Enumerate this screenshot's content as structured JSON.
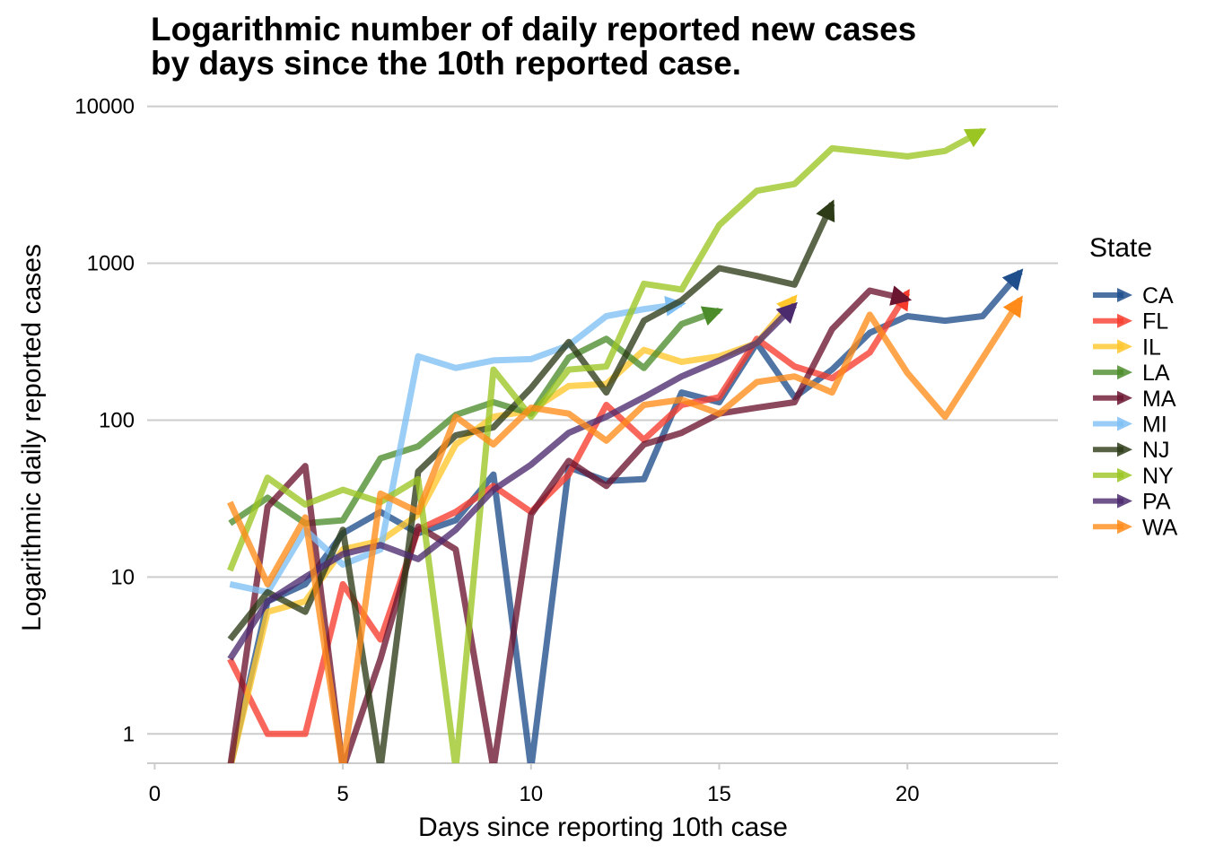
{
  "chart_data": {
    "type": "line",
    "title": "Logarithmic number of daily reported new cases by days since the 10th reported case.",
    "title_lines": [
      "Logarithmic number of daily reported new cases",
      "by days since the 10th reported case."
    ],
    "xlabel": "Days since reporting 10th case",
    "ylabel": "Logarithmic daily reported cases",
    "y_scale": "log10",
    "xlim": [
      -0.2,
      24
    ],
    "ylim": [
      0.65,
      11500
    ],
    "x_ticks": [
      0,
      5,
      10,
      15,
      20
    ],
    "x_tick_labels": [
      "0",
      "5",
      "10",
      "15",
      "20"
    ],
    "y_ticks": [
      1,
      10,
      100,
      1000,
      10000
    ],
    "y_tick_labels": [
      "1",
      "10",
      "100",
      "1000",
      "10000"
    ],
    "grid": "horizontal major",
    "legend": {
      "title": "State",
      "position": "right"
    },
    "series": [
      {
        "name": "CA",
        "color": "#1F4E8C",
        "points": [
          [
            2,
            0.6
          ],
          [
            3,
            7
          ],
          [
            4,
            9
          ],
          [
            5,
            19
          ],
          [
            6,
            26
          ],
          [
            7,
            19
          ],
          [
            8,
            23
          ],
          [
            9,
            45
          ],
          [
            10,
            0.6
          ],
          [
            11,
            50
          ],
          [
            12,
            41
          ],
          [
            13,
            42
          ],
          [
            14,
            150
          ],
          [
            15,
            130
          ],
          [
            16,
            310
          ],
          [
            17,
            140
          ],
          [
            18,
            210
          ],
          [
            19,
            360
          ],
          [
            20,
            460
          ],
          [
            21,
            430
          ],
          [
            22,
            460
          ],
          [
            23,
            880
          ]
        ]
      },
      {
        "name": "FL",
        "color": "#F73C2E",
        "points": [
          [
            2,
            3
          ],
          [
            3,
            1
          ],
          [
            4,
            1
          ],
          [
            5,
            9
          ],
          [
            6,
            4
          ],
          [
            7,
            20
          ],
          [
            8,
            26
          ],
          [
            9,
            38
          ],
          [
            10,
            26
          ],
          [
            11,
            45
          ],
          [
            12,
            125
          ],
          [
            13,
            75
          ],
          [
            14,
            125
          ],
          [
            15,
            140
          ],
          [
            16,
            330
          ],
          [
            17,
            220
          ],
          [
            18,
            185
          ],
          [
            19,
            270
          ],
          [
            20,
            650
          ]
        ]
      },
      {
        "name": "IL",
        "color": "#FFC72C",
        "points": [
          [
            2,
            0.6
          ],
          [
            3,
            6
          ],
          [
            4,
            7
          ],
          [
            5,
            15
          ],
          [
            6,
            17
          ],
          [
            7,
            25
          ],
          [
            8,
            70
          ],
          [
            9,
            105
          ],
          [
            10,
            115
          ],
          [
            11,
            165
          ],
          [
            12,
            170
          ],
          [
            13,
            280
          ],
          [
            14,
            235
          ],
          [
            15,
            255
          ],
          [
            16,
            310
          ],
          [
            17,
            600
          ]
        ]
      },
      {
        "name": "LA",
        "color": "#4C8C2B",
        "points": [
          [
            2,
            22
          ],
          [
            3,
            32
          ],
          [
            4,
            22
          ],
          [
            5,
            23
          ],
          [
            6,
            57
          ],
          [
            7,
            68
          ],
          [
            8,
            108
          ],
          [
            9,
            130
          ],
          [
            10,
            110
          ],
          [
            11,
            250
          ],
          [
            12,
            330
          ],
          [
            13,
            215
          ],
          [
            14,
            410
          ],
          [
            15,
            500
          ]
        ]
      },
      {
        "name": "MA",
        "color": "#6B1530",
        "points": [
          [
            2,
            0.6
          ],
          [
            3,
            28
          ],
          [
            4,
            51
          ],
          [
            5,
            0.6
          ],
          [
            6,
            3
          ],
          [
            7,
            21
          ],
          [
            8,
            15
          ],
          [
            9,
            0.6
          ],
          [
            10,
            25
          ],
          [
            11,
            55
          ],
          [
            12,
            38
          ],
          [
            13,
            70
          ],
          [
            14,
            83
          ],
          [
            15,
            110
          ],
          [
            16,
            120
          ],
          [
            17,
            130
          ],
          [
            18,
            380
          ],
          [
            19,
            670
          ],
          [
            20,
            590
          ]
        ]
      },
      {
        "name": "MI",
        "color": "#7FC0F5",
        "points": [
          [
            2,
            9
          ],
          [
            3,
            8
          ],
          [
            4,
            20
          ],
          [
            5,
            12
          ],
          [
            6,
            15
          ],
          [
            7,
            255
          ],
          [
            8,
            215
          ],
          [
            9,
            240
          ],
          [
            10,
            245
          ],
          [
            11,
            300
          ],
          [
            12,
            460
          ],
          [
            13,
            510
          ],
          [
            14,
            550
          ]
        ]
      },
      {
        "name": "NJ",
        "color": "#2D3B17",
        "points": [
          [
            2,
            4
          ],
          [
            3,
            8
          ],
          [
            4,
            6
          ],
          [
            5,
            20
          ],
          [
            6,
            0.6
          ],
          [
            7,
            47
          ],
          [
            8,
            80
          ],
          [
            9,
            90
          ],
          [
            10,
            160
          ],
          [
            11,
            315
          ],
          [
            12,
            150
          ],
          [
            13,
            430
          ],
          [
            14,
            580
          ],
          [
            15,
            930
          ],
          [
            16,
            830
          ],
          [
            17,
            730
          ],
          [
            18,
            2400
          ]
        ]
      },
      {
        "name": "NY",
        "color": "#9BC523",
        "points": [
          [
            2,
            11
          ],
          [
            3,
            43
          ],
          [
            4,
            29
          ],
          [
            5,
            36
          ],
          [
            6,
            30
          ],
          [
            7,
            42
          ],
          [
            8,
            0.6
          ],
          [
            9,
            210
          ],
          [
            10,
            105
          ],
          [
            11,
            210
          ],
          [
            12,
            220
          ],
          [
            13,
            740
          ],
          [
            14,
            680
          ],
          [
            15,
            1750
          ],
          [
            16,
            2900
          ],
          [
            17,
            3200
          ],
          [
            18,
            5400
          ],
          [
            19,
            5100
          ],
          [
            20,
            4800
          ],
          [
            21,
            5200
          ],
          [
            22,
            7000
          ]
        ]
      },
      {
        "name": "PA",
        "color": "#4B2A6E",
        "points": [
          [
            2,
            3
          ],
          [
            3,
            7
          ],
          [
            4,
            10
          ],
          [
            5,
            14
          ],
          [
            6,
            16
          ],
          [
            7,
            13
          ],
          [
            8,
            20
          ],
          [
            9,
            36
          ],
          [
            10,
            52
          ],
          [
            11,
            83
          ],
          [
            12,
            105
          ],
          [
            13,
            140
          ],
          [
            14,
            190
          ],
          [
            15,
            240
          ],
          [
            16,
            310
          ],
          [
            17,
            540
          ]
        ]
      },
      {
        "name": "WA",
        "color": "#FF8C1A",
        "points": [
          [
            2,
            30
          ],
          [
            3,
            9
          ],
          [
            4,
            24
          ],
          [
            5,
            0.6
          ],
          [
            6,
            34
          ],
          [
            7,
            26
          ],
          [
            8,
            105
          ],
          [
            9,
            70
          ],
          [
            10,
            120
          ],
          [
            11,
            110
          ],
          [
            12,
            74
          ],
          [
            13,
            125
          ],
          [
            14,
            135
          ],
          [
            15,
            110
          ],
          [
            16,
            175
          ],
          [
            17,
            190
          ],
          [
            18,
            150
          ],
          [
            19,
            470
          ],
          [
            20,
            200
          ],
          [
            21,
            105
          ],
          [
            23,
            590
          ]
        ]
      }
    ]
  }
}
